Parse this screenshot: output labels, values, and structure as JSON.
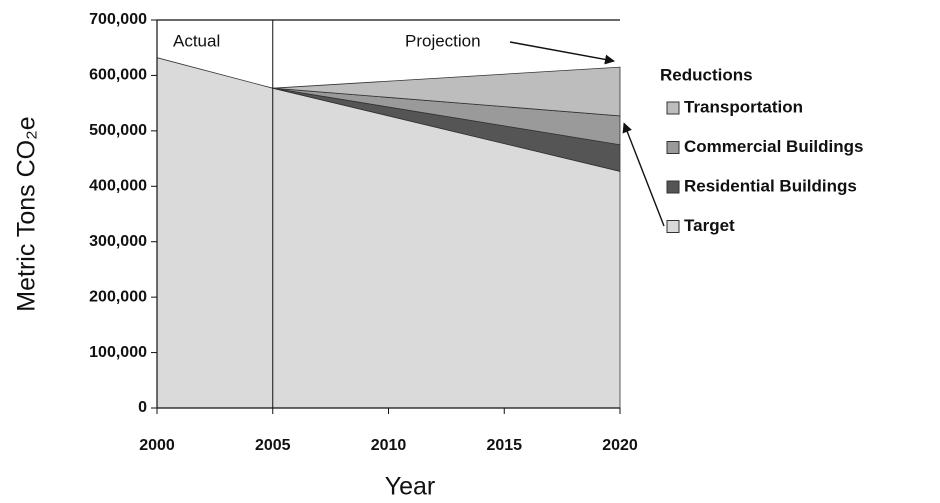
{
  "chart_data": {
    "type": "stacked_area",
    "x": [
      2000,
      2005,
      2020
    ],
    "series": [
      {
        "name": "Target",
        "color": "#dadada",
        "values": [
          632000,
          577000,
          427000
        ]
      },
      {
        "name": "Residential Buildings",
        "color": "#555555",
        "values": [
          null,
          0,
          48000
        ]
      },
      {
        "name": "Commercial Buildings",
        "color": "#9a9a9a",
        "values": [
          null,
          0,
          52000
        ]
      },
      {
        "name": "Transportation",
        "color": "#bdbdbd",
        "values": [
          null,
          0,
          88000
        ]
      }
    ],
    "xlim": [
      2000,
      2020
    ],
    "xticks": [
      2000,
      2005,
      2010,
      2015,
      2020
    ],
    "ylim": [
      0,
      700000
    ],
    "yticks": [
      0,
      {
        "value": 100000,
        "label": "100,000"
      },
      {
        "value": 200000,
        "label": "200,000"
      },
      {
        "value": 300000,
        "label": "300,000"
      },
      {
        "value": 400000,
        "label": "400,000"
      },
      {
        "value": 500000,
        "label": "500,000"
      },
      {
        "value": 600000,
        "label": "600,000"
      },
      {
        "value": 700000,
        "label": "700,000"
      }
    ],
    "xlabel": "Year",
    "ylabel": "Metric Tons CO₂e",
    "divider": 2005,
    "annotations": [
      "Actual",
      "Projection"
    ],
    "legend_title": "Reductions",
    "legend": "right"
  }
}
